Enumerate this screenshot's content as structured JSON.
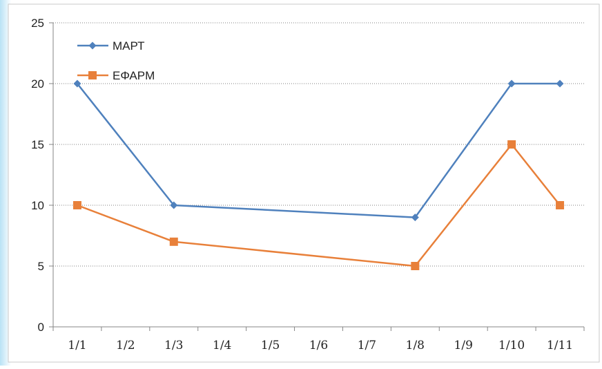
{
  "chart_data": {
    "type": "line",
    "title": "",
    "xlabel": "",
    "ylabel": "",
    "categories": [
      "1/1",
      "1/2",
      "1/3",
      "1/4",
      "1/5",
      "1/6",
      "1/7",
      "1/8",
      "1/9",
      "1/10",
      "1/11"
    ],
    "ylim": [
      0,
      25
    ],
    "yticks": [
      "0",
      "5",
      "10",
      "15",
      "20",
      "25"
    ],
    "grid": true,
    "legend": "top-left",
    "series": [
      {
        "name": "МАРТ",
        "color": "#4f81bd",
        "marker": "diamond",
        "points": [
          {
            "x": "1/1",
            "y": 20
          },
          {
            "x": "1/3",
            "y": 10
          },
          {
            "x": "1/8",
            "y": 9
          },
          {
            "x": "1/10",
            "y": 20
          },
          {
            "x": "1/11",
            "y": 20
          }
        ]
      },
      {
        "name": "ΕΦΑΡΜ",
        "color": "#e8803a",
        "marker": "square",
        "points": [
          {
            "x": "1/1",
            "y": 10
          },
          {
            "x": "1/3",
            "y": 7
          },
          {
            "x": "1/8",
            "y": 5
          },
          {
            "x": "1/10",
            "y": 15
          },
          {
            "x": "1/11",
            "y": 10
          }
        ]
      }
    ]
  }
}
